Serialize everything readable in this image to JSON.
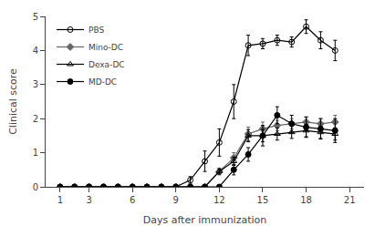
{
  "chart_data": {
    "type": "line",
    "xlabel": "Days after immunization",
    "ylabel": "Clinical score",
    "x": [
      1,
      2,
      3,
      4,
      5,
      6,
      7,
      8,
      9,
      10,
      11,
      12,
      13,
      14,
      15,
      16,
      17,
      18,
      19,
      20
    ],
    "xlim": [
      0,
      22
    ],
    "ylim": [
      0,
      5
    ],
    "xticks": [
      1,
      3,
      6,
      9,
      12,
      15,
      18,
      21
    ],
    "yticks": [
      0,
      1,
      2,
      3,
      4,
      5
    ],
    "grid": false,
    "legend": "upper left",
    "series": [
      {
        "name": "PBS",
        "color": "#000000",
        "marker": "circle-open",
        "values": [
          0,
          0,
          0,
          0,
          0,
          0,
          0,
          0,
          0,
          0.2,
          0.75,
          1.3,
          2.5,
          4.15,
          4.2,
          4.3,
          4.25,
          4.7,
          4.3,
          4.0
        ],
        "yerr": [
          0,
          0,
          0,
          0,
          0,
          0,
          0,
          0,
          0,
          0.1,
          0.3,
          0.4,
          0.5,
          0.3,
          0.15,
          0.15,
          0.15,
          0.2,
          0.25,
          0.3
        ]
      },
      {
        "name": "Mino-DC",
        "color": "#666666",
        "marker": "diamond",
        "values": [
          0,
          0,
          0,
          0,
          0,
          0,
          0,
          0,
          0,
          0,
          0,
          0.45,
          0.85,
          1.55,
          1.7,
          1.8,
          1.85,
          1.9,
          1.85,
          1.9
        ],
        "yerr": [
          0,
          0,
          0,
          0,
          0,
          0,
          0,
          0,
          0,
          0,
          0,
          0.1,
          0.15,
          0.2,
          0.2,
          0.15,
          0.15,
          0.15,
          0.15,
          0.2
        ]
      },
      {
        "name": "Dexa-DC",
        "color": "#000000",
        "marker": "triangle-up-open",
        "values": [
          0,
          0,
          0,
          0,
          0,
          0,
          0,
          0,
          0,
          0,
          0,
          0.45,
          0.75,
          1.5,
          1.5,
          1.55,
          1.6,
          1.65,
          1.6,
          1.55
        ],
        "yerr": [
          0,
          0,
          0,
          0,
          0,
          0,
          0,
          0,
          0,
          0,
          0,
          0.08,
          0.12,
          0.18,
          0.18,
          0.18,
          0.18,
          0.18,
          0.18,
          0.18
        ]
      },
      {
        "name": "MD-DC",
        "color": "#000000",
        "marker": "circle",
        "values": [
          0,
          0,
          0,
          0,
          0,
          0,
          0,
          0,
          0,
          0,
          0,
          0,
          0.5,
          0.95,
          1.5,
          2.1,
          1.85,
          1.75,
          1.7,
          1.65
        ],
        "yerr": [
          0,
          0,
          0,
          0,
          0,
          0,
          0,
          0,
          0,
          0,
          0,
          0,
          0.15,
          0.2,
          0.3,
          0.25,
          0.25,
          0.3,
          0.3,
          0.35
        ]
      }
    ]
  }
}
